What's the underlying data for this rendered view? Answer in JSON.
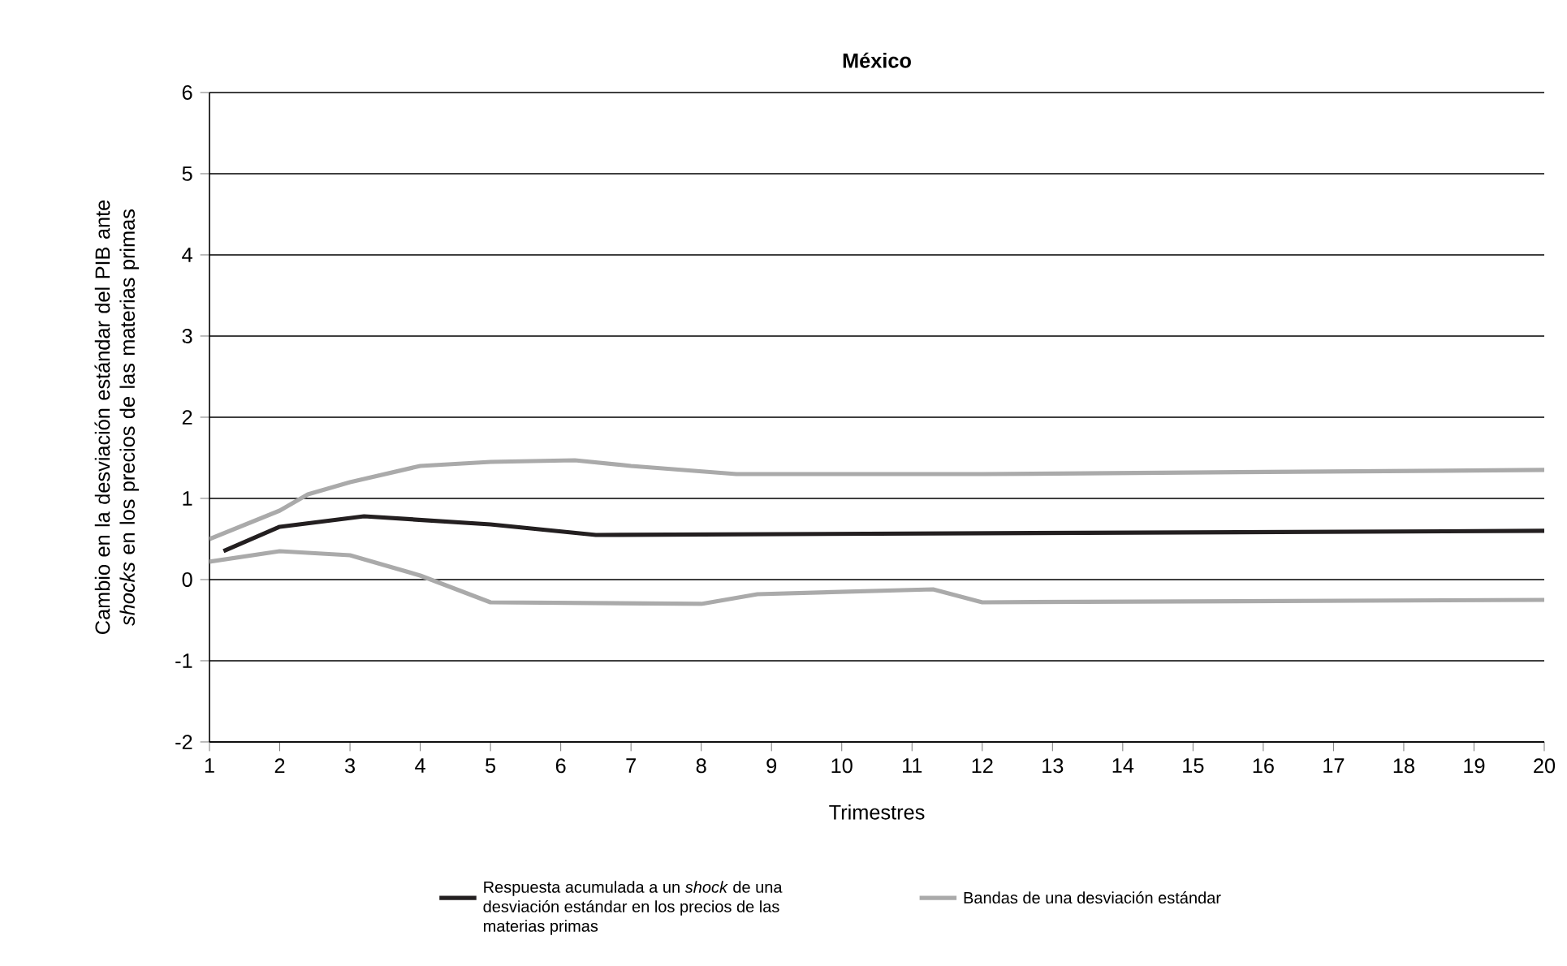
{
  "chart_data": {
    "type": "line",
    "title": "**México**",
    "xlabel": "Trimestres",
    "ylabel": "Cambio en la desviación estándar del PIB ante *shocks* en los precios de las materias primas",
    "xlim": [
      1,
      20
    ],
    "ylim": [
      -2,
      6
    ],
    "xticks": [
      1,
      2,
      3,
      4,
      5,
      6,
      7,
      8,
      9,
      10,
      11,
      12,
      13,
      14,
      15,
      16,
      17,
      18,
      19,
      20
    ],
    "yticks": [
      -2,
      -1,
      0,
      1,
      2,
      3,
      4,
      5,
      6
    ],
    "grid": "y",
    "legend": "bottom",
    "marker": "none",
    "line_style": "solid",
    "series": [
      {
        "name": "Respuesta acumulada a un *shock* de una desviación estándar en los precios de las materias primas",
        "color": "#231f20",
        "x": [
          1.2,
          2,
          3.2,
          5,
          6.5,
          20
        ],
        "values": [
          0.35,
          0.65,
          0.78,
          0.68,
          0.55,
          0.6
        ]
      },
      {
        "name": "Bandas de una desviación estándar",
        "color": "#aaaaaa",
        "x": [
          1,
          2,
          2.4,
          3,
          4,
          5,
          6.2,
          7,
          8.5,
          12,
          20
        ],
        "values": [
          0.5,
          0.85,
          1.05,
          1.2,
          1.4,
          1.45,
          1.47,
          1.4,
          1.3,
          1.3,
          1.35
        ]
      },
      {
        "color": "#aaaaaa",
        "x": [
          1,
          2,
          3,
          4,
          5,
          8,
          8.8,
          11.3,
          12,
          20
        ],
        "values": [
          0.22,
          0.35,
          0.3,
          0.05,
          -0.28,
          -0.3,
          -0.18,
          -0.12,
          -0.28,
          -0.25
        ]
      }
    ]
  }
}
